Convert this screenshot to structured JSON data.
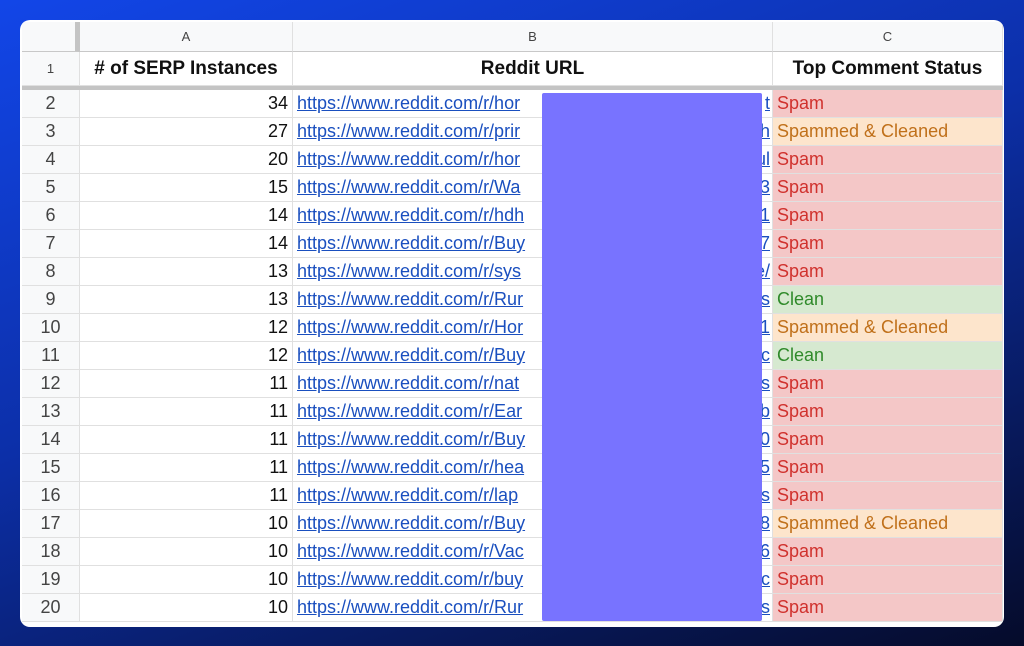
{
  "columns": {
    "row_header": "",
    "a": "A",
    "b": "B",
    "c": "C"
  },
  "header": {
    "row": "1",
    "a": "# of SERP Instances",
    "b": "Reddit URL",
    "c": "Top Comment Status"
  },
  "colors": {
    "spam_bg": "#f4c7c7",
    "spam_fg": "#d0312d",
    "spammed_cleaned_bg": "#fde5cc",
    "spammed_cleaned_fg": "#c0701a",
    "clean_bg": "#d6e9d0",
    "clean_fg": "#2f8a2a",
    "redaction": "#7873ff",
    "link": "#1a4fbf"
  },
  "rows": [
    {
      "n": "2",
      "count": "34",
      "url": "https://www.reddit.com/r/hor",
      "tail": "t",
      "status": "Spam",
      "type": "spam"
    },
    {
      "n": "3",
      "count": "27",
      "url": "https://www.reddit.com/r/prir",
      "tail": "/h",
      "status": "Spammed & Cleaned",
      "type": "sc"
    },
    {
      "n": "4",
      "count": "20",
      "url": "https://www.reddit.com/r/hor",
      "tail": "ul",
      "status": "Spam",
      "type": "spam"
    },
    {
      "n": "5",
      "count": "15",
      "url": "https://www.reddit.com/r/Wa",
      "tail": "3",
      "status": "Spam",
      "type": "spam"
    },
    {
      "n": "6",
      "count": "14",
      "url": "https://www.reddit.com/r/hdh",
      "tail": "1",
      "status": "Spam",
      "type": "spam"
    },
    {
      "n": "7",
      "count": "14",
      "url": "https://www.reddit.com/r/Buy",
      "tail": "n7",
      "status": "Spam",
      "type": "spam"
    },
    {
      "n": "8",
      "count": "13",
      "url": "https://www.reddit.com/r/sys",
      "tail": "e/",
      "status": "Spam",
      "type": "spam"
    },
    {
      "n": "9",
      "count": "13",
      "url": "https://www.reddit.com/r/Rur",
      "tail": "ts",
      "status": "Clean",
      "type": "clean"
    },
    {
      "n": "10",
      "count": "12",
      "url": "https://www.reddit.com/r/Hor",
      "tail": "1",
      "status": "Spammed & Cleaned",
      "type": "sc"
    },
    {
      "n": "11",
      "count": "12",
      "url": "https://www.reddit.com/r/Buy",
      "tail": "4c",
      "status": "Clean",
      "type": "clean"
    },
    {
      "n": "12",
      "count": "11",
      "url": "https://www.reddit.com/r/nat",
      "tail": "ts",
      "status": "Spam",
      "type": "spam"
    },
    {
      "n": "13",
      "count": "11",
      "url": "https://www.reddit.com/r/Ear",
      "tail": "/b",
      "status": "Spam",
      "type": "spam"
    },
    {
      "n": "14",
      "count": "11",
      "url": "https://www.reddit.com/r/Buy",
      "tail": "0",
      "status": "Spam",
      "type": "spam"
    },
    {
      "n": "15",
      "count": "11",
      "url": "https://www.reddit.com/r/hea",
      "tail": "45",
      "status": "Spam",
      "type": "spam"
    },
    {
      "n": "16",
      "count": "11",
      "url": "https://www.reddit.com/r/lap",
      "tail": "es",
      "status": "Spam",
      "type": "spam"
    },
    {
      "n": "17",
      "count": "10",
      "url": "https://www.reddit.com/r/Buy",
      "tail": "o8",
      "status": "Spammed & Cleaned",
      "type": "sc"
    },
    {
      "n": "18",
      "count": "10",
      "url": "https://www.reddit.com/r/Vac",
      "tail": "16",
      "status": "Spam",
      "type": "spam"
    },
    {
      "n": "19",
      "count": "10",
      "url": "https://www.reddit.com/r/buy",
      "tail": "ac",
      "status": "Spam",
      "type": "spam"
    },
    {
      "n": "20",
      "count": "10",
      "url": "https://www.reddit.com/r/Rur",
      "tail": "ts",
      "status": "Spam",
      "type": "spam"
    }
  ]
}
